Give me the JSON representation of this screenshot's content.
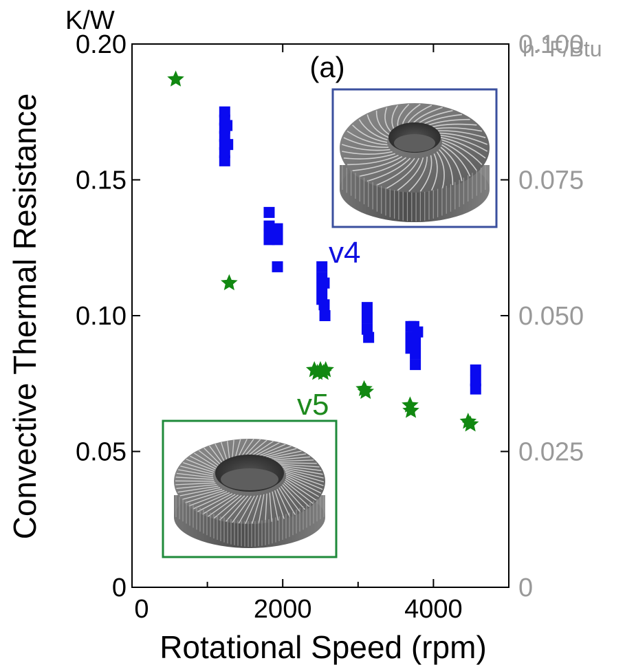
{
  "chart_data": {
    "type": "scatter",
    "panel_label": "(a)",
    "xlabel": "Rotational Speed (rpm)",
    "ylabel": "Convective Thermal Resistance",
    "y_unit": "K/W",
    "y2_unit": "h·˚F/Btu",
    "xlim": [
      0,
      5000
    ],
    "ylim": [
      0,
      0.2
    ],
    "x_ticks": [
      "0",
      "2000",
      "4000"
    ],
    "y_ticks": [
      "0",
      "0.05",
      "0.10",
      "0.15",
      "0.20"
    ],
    "y2_ticks": [
      "0",
      "0.025",
      "0.050",
      "0.075",
      "0.100"
    ],
    "grid": false,
    "series": [
      {
        "name": "v4",
        "color": "#0a0af0",
        "marker": "square",
        "points": [
          {
            "x": 1230,
            "y": 0.175
          },
          {
            "x": 1230,
            "y": 0.172
          },
          {
            "x": 1230,
            "y": 0.169
          },
          {
            "x": 1230,
            "y": 0.166
          },
          {
            "x": 1230,
            "y": 0.163
          },
          {
            "x": 1230,
            "y": 0.16
          },
          {
            "x": 1230,
            "y": 0.157
          },
          {
            "x": 1260,
            "y": 0.17
          },
          {
            "x": 1270,
            "y": 0.163
          },
          {
            "x": 1820,
            "y": 0.138
          },
          {
            "x": 1820,
            "y": 0.133
          },
          {
            "x": 1820,
            "y": 0.13
          },
          {
            "x": 1820,
            "y": 0.128
          },
          {
            "x": 1880,
            "y": 0.131
          },
          {
            "x": 1930,
            "y": 0.132
          },
          {
            "x": 1930,
            "y": 0.128
          },
          {
            "x": 1930,
            "y": 0.118
          },
          {
            "x": 2520,
            "y": 0.118
          },
          {
            "x": 2520,
            "y": 0.114
          },
          {
            "x": 2520,
            "y": 0.11
          },
          {
            "x": 2520,
            "y": 0.106
          },
          {
            "x": 2550,
            "y": 0.112
          },
          {
            "x": 2550,
            "y": 0.104
          },
          {
            "x": 2560,
            "y": 0.1
          },
          {
            "x": 3120,
            "y": 0.103
          },
          {
            "x": 3120,
            "y": 0.099
          },
          {
            "x": 3120,
            "y": 0.095
          },
          {
            "x": 3140,
            "y": 0.092
          },
          {
            "x": 3700,
            "y": 0.096
          },
          {
            "x": 3700,
            "y": 0.092
          },
          {
            "x": 3700,
            "y": 0.088
          },
          {
            "x": 3740,
            "y": 0.096
          },
          {
            "x": 3760,
            "y": 0.09
          },
          {
            "x": 3760,
            "y": 0.086
          },
          {
            "x": 3760,
            "y": 0.082
          },
          {
            "x": 3790,
            "y": 0.094
          },
          {
            "x": 4560,
            "y": 0.08
          },
          {
            "x": 4560,
            "y": 0.076
          },
          {
            "x": 4560,
            "y": 0.073
          }
        ]
      },
      {
        "name": "v5",
        "color": "#118811",
        "marker": "star",
        "points": [
          {
            "x": 580,
            "y": 0.187
          },
          {
            "x": 1290,
            "y": 0.112
          },
          {
            "x": 2420,
            "y": 0.08
          },
          {
            "x": 2460,
            "y": 0.079
          },
          {
            "x": 2500,
            "y": 0.08
          },
          {
            "x": 2540,
            "y": 0.079
          },
          {
            "x": 2570,
            "y": 0.08
          },
          {
            "x": 3080,
            "y": 0.073
          },
          {
            "x": 3100,
            "y": 0.072
          },
          {
            "x": 3690,
            "y": 0.067
          },
          {
            "x": 3700,
            "y": 0.065
          },
          {
            "x": 4460,
            "y": 0.061
          },
          {
            "x": 4490,
            "y": 0.06
          }
        ]
      }
    ],
    "insets": [
      {
        "series": "v4",
        "border_color": "#3a4f9e",
        "image": "dense-curved-fin-heat-sink"
      },
      {
        "series": "v5",
        "border_color": "#1e8a3a",
        "image": "pin-fin-heat-sink"
      }
    ]
  }
}
